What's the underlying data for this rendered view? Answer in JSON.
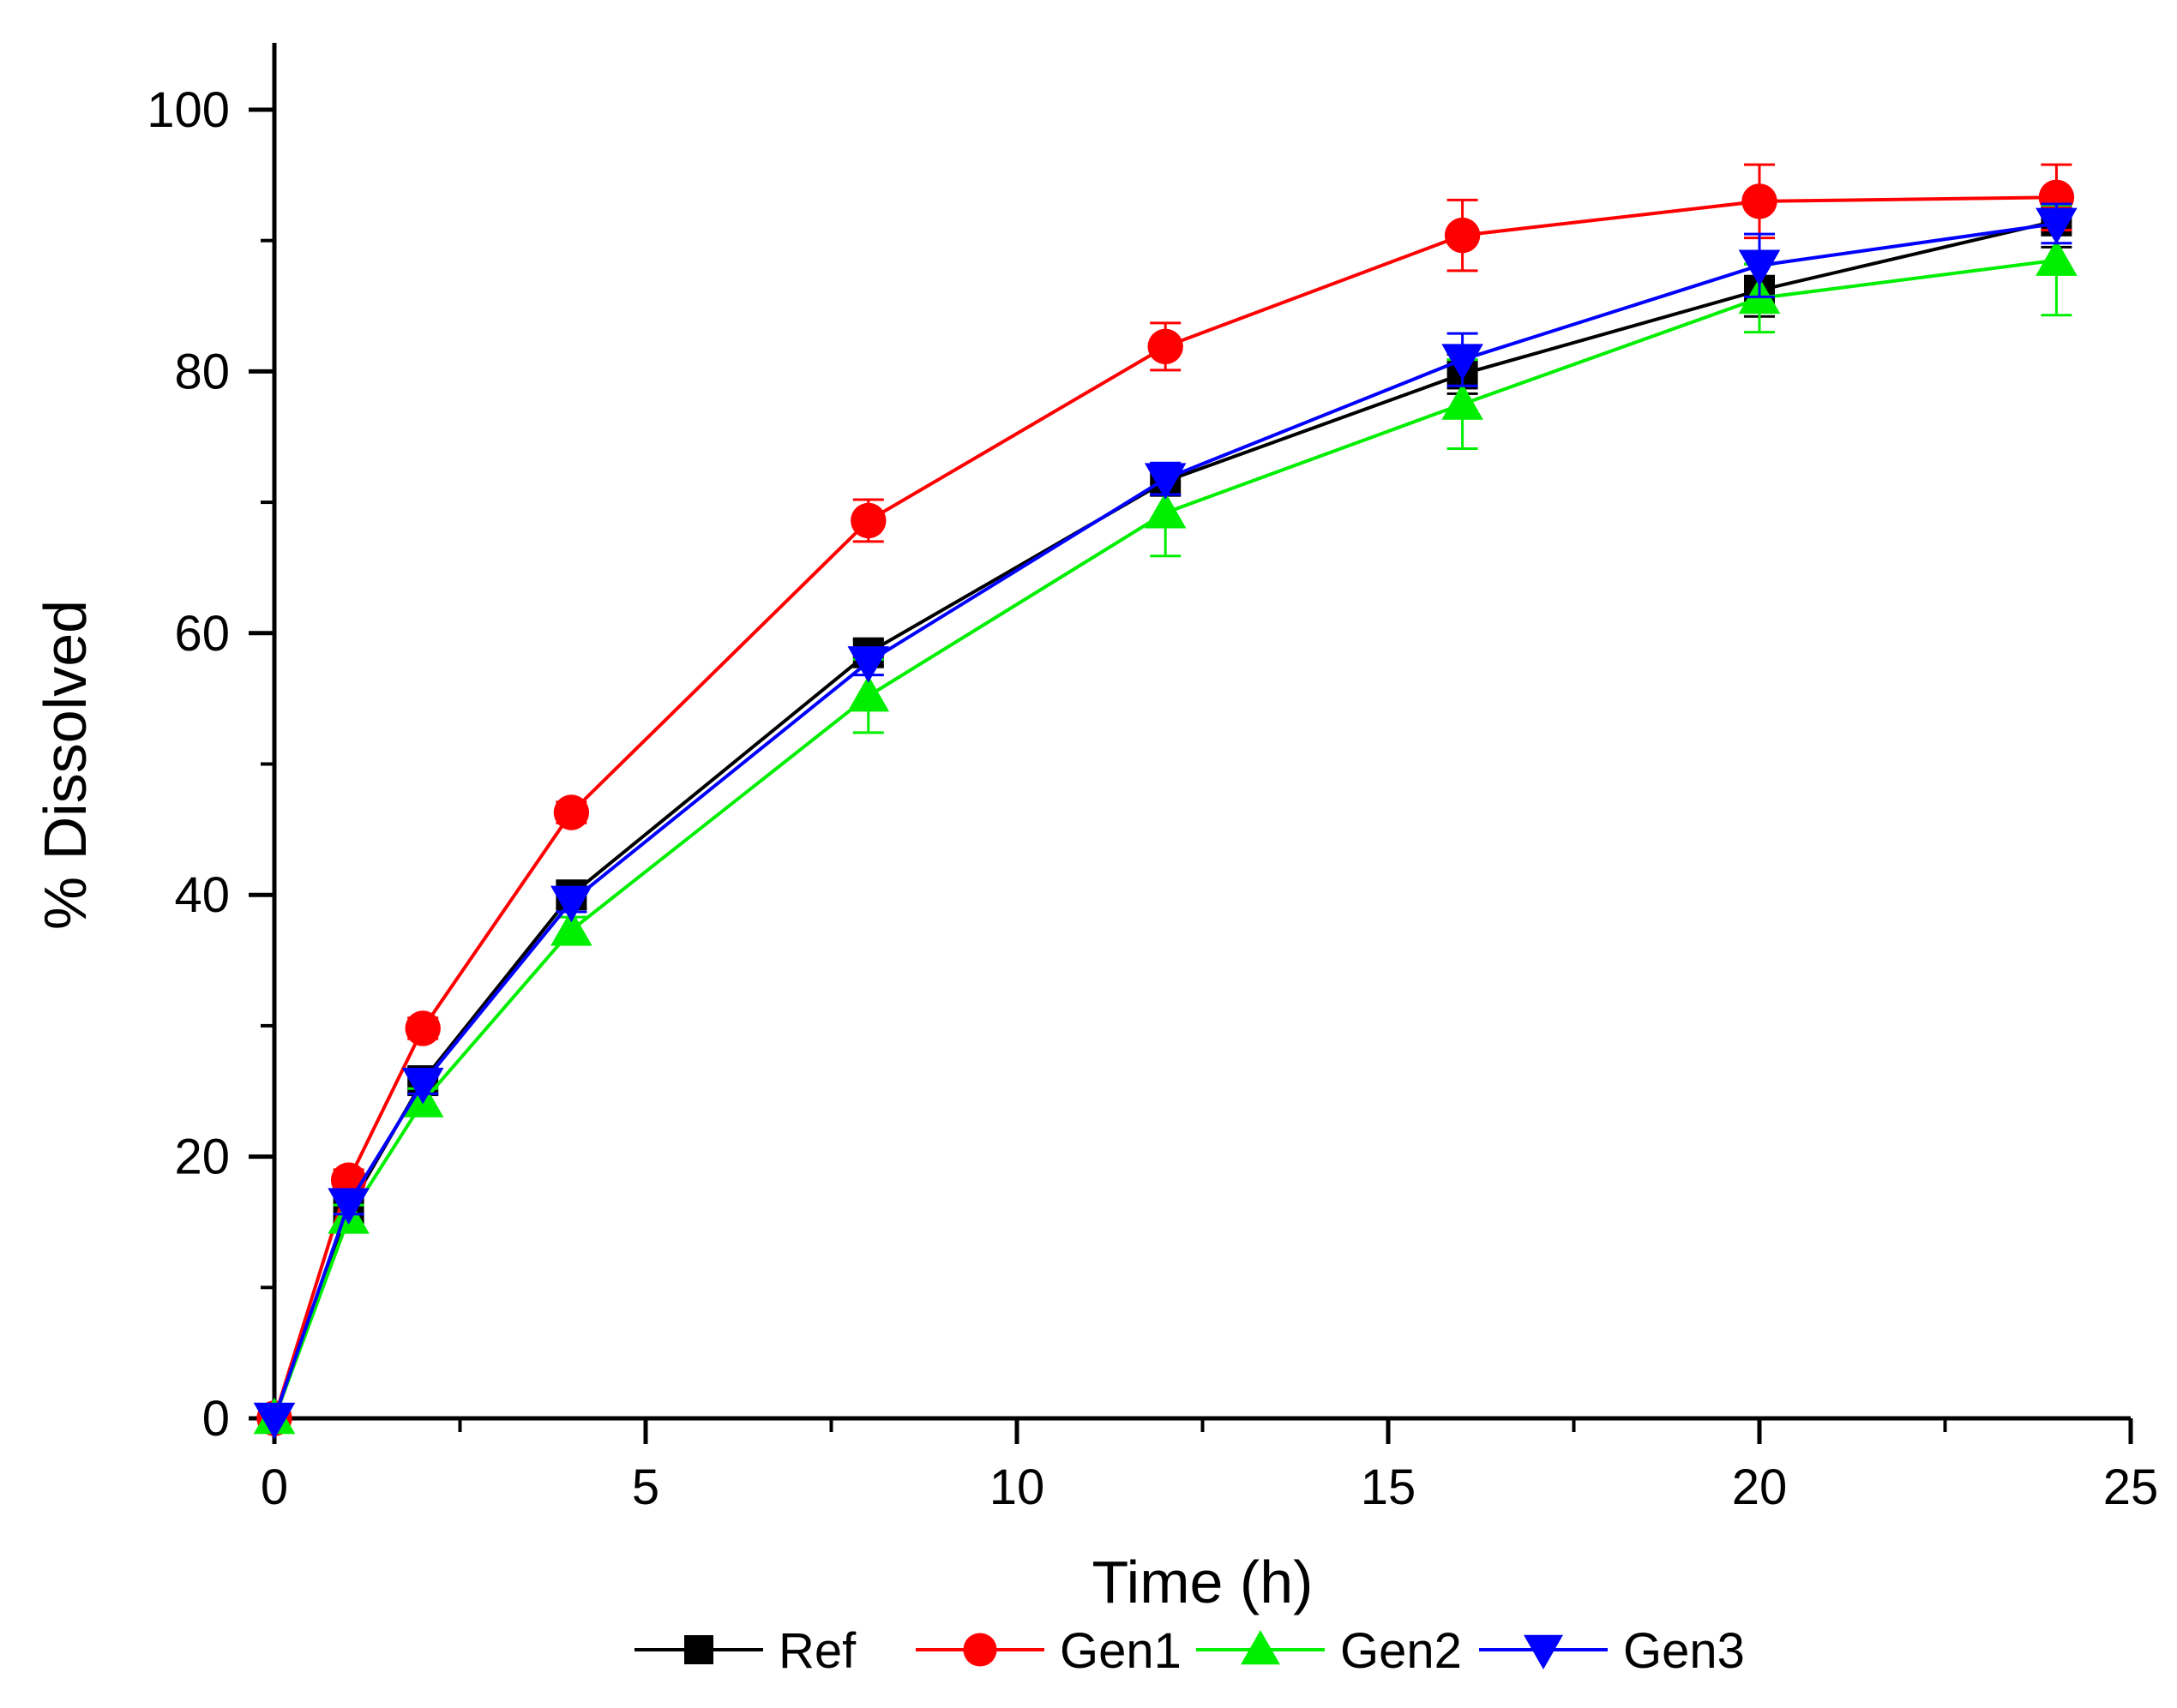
{
  "chart_data": {
    "type": "line",
    "title": "",
    "xlabel": "Time (h)",
    "ylabel": "% Dissolved",
    "xlim": [
      0,
      25
    ],
    "ylim": [
      0,
      105
    ],
    "x_major_ticks": [
      0,
      5,
      10,
      15,
      20,
      25
    ],
    "x_minor_ticks": [
      2.5,
      7.5,
      12.5,
      17.5,
      22.5
    ],
    "y_major_ticks": [
      0,
      20,
      40,
      60,
      80,
      100
    ],
    "y_minor_ticks": [
      10,
      30,
      50,
      70,
      90
    ],
    "x_tick_labels": [
      "0",
      "5",
      "10",
      "15",
      "20",
      "25"
    ],
    "y_tick_labels": [
      "0",
      "20",
      "40",
      "60",
      "80",
      "100"
    ],
    "grid": false,
    "legend_position": "bottom",
    "series": [
      {
        "name": "Ref",
        "color": "#000000",
        "marker": "square",
        "x": [
          0,
          1,
          2,
          4,
          8,
          12,
          16,
          20,
          24
        ],
        "values": [
          0,
          16.0,
          25.8,
          40.0,
          58.5,
          71.6,
          79.8,
          86.2,
          91.5
        ],
        "errors": [
          0,
          1.0,
          1.0,
          1.0,
          1.0,
          1.0,
          1.5,
          2.0,
          2.0
        ]
      },
      {
        "name": "Gen1",
        "color": "#ff0000",
        "marker": "circle",
        "x": [
          0,
          1,
          2,
          4,
          8,
          12,
          16,
          20,
          24
        ],
        "values": [
          0,
          18.2,
          29.8,
          46.3,
          68.6,
          81.9,
          90.4,
          93.0,
          93.3
        ],
        "errors": [
          0,
          0.8,
          0.8,
          0.8,
          1.6,
          1.8,
          2.7,
          2.8,
          2.5
        ]
      },
      {
        "name": "Gen2",
        "color": "#00ee00",
        "marker": "triangle-up",
        "x": [
          0,
          1,
          2,
          4,
          8,
          12,
          16,
          20,
          24
        ],
        "values": [
          0,
          15.3,
          24.2,
          37.3,
          55.2,
          69.2,
          77.5,
          85.6,
          88.5
        ],
        "errors": [
          0,
          1.0,
          1.0,
          1.0,
          2.8,
          3.3,
          3.4,
          2.6,
          4.2
        ]
      },
      {
        "name": "Gen3",
        "color": "#0000ff",
        "marker": "triangle-down",
        "x": [
          0,
          1,
          2,
          4,
          8,
          12,
          16,
          20,
          24
        ],
        "values": [
          0,
          16.4,
          25.6,
          39.5,
          57.8,
          71.8,
          80.9,
          88.1,
          91.3
        ],
        "errors": [
          0,
          0.8,
          0.8,
          0.8,
          1.0,
          1.2,
          2.0,
          2.4,
          1.5
        ]
      }
    ]
  }
}
